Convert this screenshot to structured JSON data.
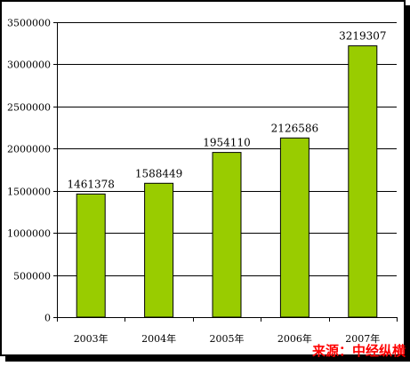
{
  "chart_data": {
    "type": "bar",
    "categories": [
      "2003年",
      "2004年",
      "2005年",
      "2006年",
      "2007年"
    ],
    "values": [
      1461378,
      1588449,
      1954110,
      2126586,
      3219307
    ],
    "data_labels": [
      "1461378",
      "1588449",
      "1954110",
      "2126586",
      "3219307"
    ],
    "ylim": [
      0,
      3500000
    ],
    "yticks": [
      0,
      500000,
      1000000,
      1500000,
      2000000,
      2500000,
      3000000,
      3500000
    ],
    "ytick_labels": [
      "0",
      "500000",
      "1000000",
      "1500000",
      "2000000",
      "2500000",
      "3000000",
      "3500000"
    ],
    "grid": true,
    "legend": "none",
    "bar_color": "#99cc00",
    "source_text": "来源：中经纵横",
    "source_color": "#ff0000"
  }
}
